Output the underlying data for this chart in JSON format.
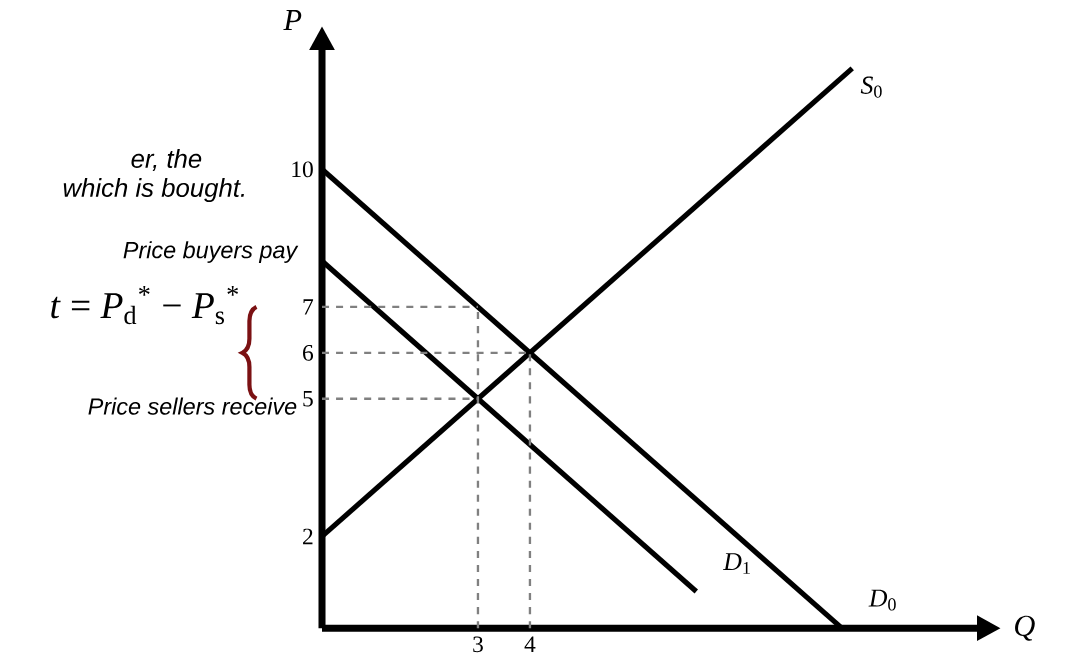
{
  "chart_data": {
    "type": "line",
    "xlabel": "Q",
    "ylabel": "P",
    "annotations": [
      "er, the",
      "which is bought.",
      "Price buyers pay",
      "*t* =  *P*$_{d}$$^{*}$ − *P*$_{s}$$^{*}$",
      "Price sellers receive"
    ],
    "xlim": [
      0,
      12.6
    ],
    "ylim": [
      0,
      12.6
    ],
    "xticks": [
      3,
      4
    ],
    "yticks": [
      2,
      5,
      6,
      7,
      10
    ],
    "line_style": "solid",
    "marker": "none",
    "series": [
      {
        "name": "*S*$_{0}$",
        "color": "#000000",
        "x": [
          0,
          10.2
        ],
        "values": [
          2,
          12.2
        ]
      },
      {
        "name": "*D*$_{1}$",
        "color": "#000000",
        "x": [
          0,
          7.2
        ],
        "values": [
          8,
          0.8
        ]
      },
      {
        "name": "*D*$_{0}$",
        "color": "#000000",
        "x": [
          0,
          10
        ],
        "values": [
          10,
          0
        ]
      },
      {
        "color": "#808080",
        "line_style": "dashed",
        "x": [
          0,
          3
        ],
        "values": [
          7,
          7
        ]
      },
      {
        "color": "#808080",
        "line_style": "dashed",
        "x": [
          0,
          4
        ],
        "values": [
          6,
          6
        ]
      },
      {
        "color": "#808080",
        "line_style": "dashed",
        "x": [
          0,
          3
        ],
        "values": [
          5,
          5
        ]
      },
      {
        "color": "#808080",
        "line_style": "dashed",
        "x": [
          3,
          3
        ],
        "values": [
          0,
          7
        ]
      },
      {
        "color": "#808080",
        "line_style": "dashed",
        "x": [
          4,
          4
        ],
        "values": [
          0,
          6
        ]
      }
    ]
  }
}
